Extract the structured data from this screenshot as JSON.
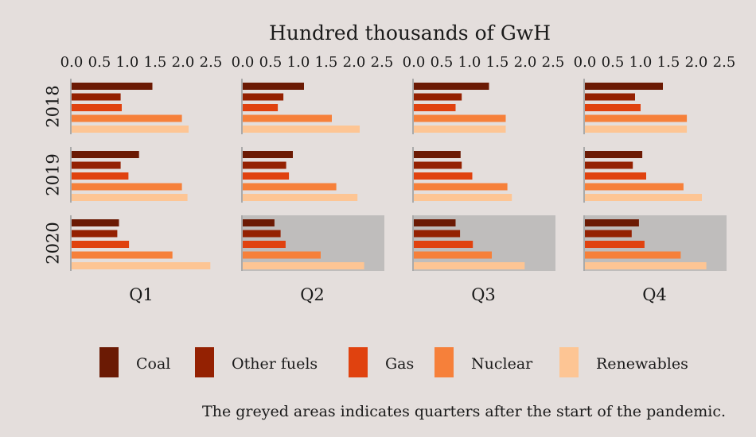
{
  "colors": {
    "background": "#e4dedc",
    "shade": "#bfbdbc",
    "axis_line": "#aaaaaa",
    "text": "#1a1a1a",
    "Coal": "#6b1a04",
    "Other fuels": "#942102",
    "Gas": "#e0420f",
    "Nuclear": "#f6803a",
    "Renewables": "#fdc594"
  },
  "chart_data": {
    "type": "bar",
    "orientation": "horizontal",
    "title": "Hundred thousands of GwH",
    "xlim": [
      0,
      2.5
    ],
    "x_ticks": [
      "0.0",
      "0.5",
      "1.0",
      "1.5",
      "2.0",
      "2.5"
    ],
    "rows": [
      "2018",
      "2019",
      "2020"
    ],
    "columns": [
      "Q1",
      "Q2",
      "Q3",
      "Q4"
    ],
    "series_order": [
      "Coal",
      "Other fuels",
      "Gas",
      "Nuclear",
      "Renewables"
    ],
    "legend_position": "bottom",
    "shaded_panels": [
      [
        "2020",
        "Q2"
      ],
      [
        "2020",
        "Q3"
      ],
      [
        "2020",
        "Q4"
      ]
    ],
    "note": "The greyed areas indicates quarters after the start of the pandemic.",
    "panels": [
      {
        "year": "2018",
        "quarter": "Q1",
        "values": [
          1.45,
          0.88,
          0.9,
          1.98,
          2.1
        ]
      },
      {
        "year": "2018",
        "quarter": "Q2",
        "values": [
          1.1,
          0.73,
          0.63,
          1.6,
          2.1
        ]
      },
      {
        "year": "2018",
        "quarter": "Q3",
        "values": [
          1.35,
          0.86,
          0.75,
          1.65,
          1.65
        ]
      },
      {
        "year": "2018",
        "quarter": "Q4",
        "values": [
          1.4,
          0.9,
          1.0,
          1.83,
          1.83
        ]
      },
      {
        "year": "2019",
        "quarter": "Q1",
        "values": [
          1.21,
          0.88,
          1.02,
          1.98,
          2.08
        ]
      },
      {
        "year": "2019",
        "quarter": "Q2",
        "values": [
          0.9,
          0.78,
          0.83,
          1.68,
          2.06
        ]
      },
      {
        "year": "2019",
        "quarter": "Q3",
        "values": [
          0.84,
          0.86,
          1.05,
          1.68,
          1.76
        ]
      },
      {
        "year": "2019",
        "quarter": "Q4",
        "values": [
          1.03,
          0.86,
          1.1,
          1.77,
          2.1
        ]
      },
      {
        "year": "2020",
        "quarter": "Q1",
        "values": [
          0.85,
          0.82,
          1.03,
          1.81,
          2.49
        ]
      },
      {
        "year": "2020",
        "quarter": "Q2",
        "values": [
          0.57,
          0.68,
          0.77,
          1.4,
          2.18
        ]
      },
      {
        "year": "2020",
        "quarter": "Q3",
        "values": [
          0.75,
          0.83,
          1.06,
          1.4,
          1.99
        ]
      },
      {
        "year": "2020",
        "quarter": "Q4",
        "values": [
          0.97,
          0.84,
          1.07,
          1.72,
          2.18
        ]
      }
    ]
  }
}
